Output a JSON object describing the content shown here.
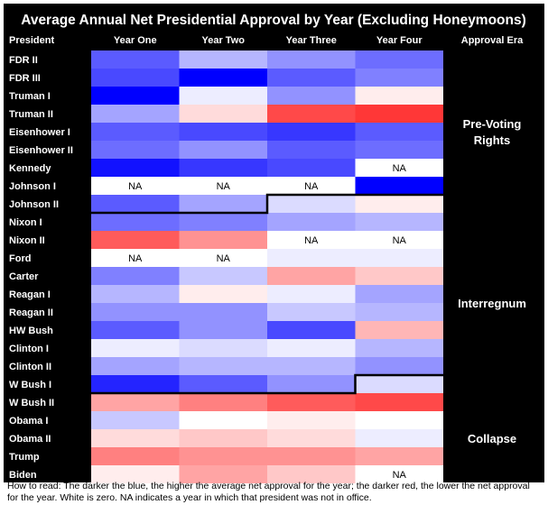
{
  "chart_data": {
    "type": "heatmap",
    "title": "Average Annual Net Presidential Approval by Year (Excluding Honeymoons)",
    "row_header": "President",
    "era_header": "Approval Era",
    "columns": [
      "Year One",
      "Year Two",
      "Year Three",
      "Year Four"
    ],
    "rows": [
      "FDR II",
      "FDR III",
      "Truman I",
      "Truman II",
      "Eisenhower I",
      "Eisenhower II",
      "Kennedy",
      "Johnson I",
      "Johnson II",
      "Nixon I",
      "Nixon II",
      "Ford",
      "Carter",
      "Reagan I",
      "Reagan II",
      "HW Bush",
      "Clinton I",
      "Clinton II",
      "W Bush I",
      "W Bush II",
      "Obama I",
      "Obama II",
      "Trump",
      "Biden"
    ],
    "values": [
      [
        45,
        20,
        30,
        40
      ],
      [
        50,
        70,
        45,
        35
      ],
      [
        70,
        5,
        30,
        -5
      ],
      [
        25,
        -10,
        -50,
        -55
      ],
      [
        45,
        50,
        55,
        45
      ],
      [
        40,
        30,
        45,
        40
      ],
      [
        65,
        55,
        50,
        null
      ],
      [
        null,
        null,
        null,
        70
      ],
      [
        45,
        25,
        10,
        -5
      ],
      [
        40,
        35,
        25,
        20
      ],
      [
        -45,
        -30,
        null,
        null
      ],
      [
        null,
        null,
        5,
        5
      ],
      [
        35,
        15,
        -25,
        -15
      ],
      [
        20,
        -5,
        5,
        25
      ],
      [
        30,
        30,
        15,
        20
      ],
      [
        45,
        30,
        50,
        -20
      ],
      [
        5,
        10,
        5,
        20
      ],
      [
        25,
        20,
        20,
        30
      ],
      [
        60,
        45,
        30,
        10
      ],
      [
        -25,
        -35,
        -45,
        -50
      ],
      [
        15,
        0,
        -5,
        0
      ],
      [
        -10,
        -15,
        -10,
        5
      ],
      [
        -35,
        -30,
        -30,
        -25
      ],
      [
        -5,
        -25,
        -15,
        null
      ]
    ],
    "na_label": "NA",
    "eras": [
      {
        "label": "Pre-Voting Rights",
        "start_row": 0,
        "end_row": 8
      },
      {
        "label": "Interregnum",
        "start_row": 9,
        "end_row": 18
      },
      {
        "label": "Collapse",
        "start_row": 19,
        "end_row": 23
      }
    ],
    "color_scale": {
      "positive": "#0000ff",
      "negative": "#ff0000",
      "zero": "#ffffff",
      "max_abs": 70
    },
    "footnote": "How to read: The darker the blue, the higher the average net approval for the year; the darker red, the lower the net approval for the year. White is zero. NA indicates a year in which that president was not in office."
  }
}
